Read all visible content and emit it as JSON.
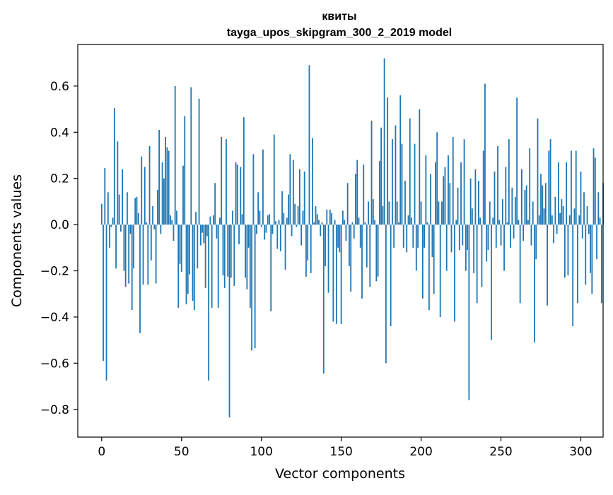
{
  "chart_data": {
    "type": "bar",
    "title": "квиты",
    "subtitle": "tayga_upos_skipgram_300_2_2019 model",
    "xlabel": "Vector components",
    "ylabel": "Components values",
    "xlim": [
      -14.95,
      313.95
    ],
    "ylim": [
      -0.92,
      0.78
    ],
    "grid": false,
    "legend": "none",
    "bar_color": "#1f77b4",
    "x_ticks": [
      0,
      50,
      100,
      150,
      200,
      250,
      300
    ],
    "y_ticks": [
      -0.8,
      -0.6,
      -0.4,
      -0.2,
      0.0,
      0.2,
      0.4,
      0.6
    ],
    "x_tick_labels": [
      "0",
      "50",
      "100",
      "150",
      "200",
      "250",
      "300"
    ],
    "y_tick_labels": [
      "−0.8",
      "−0.6",
      "−0.4",
      "−0.2",
      "0.0",
      "0.2",
      "0.4",
      "0.6"
    ],
    "values": [
      0.09,
      -0.59,
      0.245,
      -0.675,
      0.14,
      -0.1,
      -0.01,
      0.03,
      0.505,
      -0.19,
      0.36,
      0.13,
      -0.03,
      0.24,
      -0.2,
      -0.27,
      0.14,
      -0.255,
      -0.04,
      -0.37,
      -0.19,
      0.115,
      0.12,
      0.05,
      -0.47,
      0.295,
      -0.26,
      0.25,
      0.01,
      -0.26,
      0.34,
      -0.155,
      0.08,
      -0.02,
      -0.255,
      0.15,
      0.41,
      -0.04,
      0.27,
      0.2,
      0.38,
      0.335,
      0.32,
      0.04,
      0.02,
      -0.07,
      0.6,
      0.06,
      -0.36,
      -0.17,
      -0.205,
      0.255,
      0.47,
      -0.345,
      -0.3,
      -0.215,
      0.595,
      -0.33,
      -0.37,
      0.055,
      -0.19,
      0.545,
      -0.09,
      -0.035,
      -0.08,
      -0.275,
      -0.05,
      -0.675,
      0.035,
      -0.36,
      0.04,
      0.18,
      -0.06,
      -0.36,
      0.03,
      0.38,
      -0.22,
      -0.275,
      0.37,
      -0.225,
      -0.835,
      -0.23,
      0.06,
      -0.265,
      0.27,
      0.26,
      -0.085,
      0.25,
      0.045,
      0.465,
      -0.23,
      -0.28,
      -0.1,
      -0.36,
      -0.545,
      0.305,
      -0.535,
      -0.04,
      0.14,
      0.06,
      -0.01,
      0.325,
      -0.065,
      -0.035,
      0.04,
      0.045,
      -0.375,
      -0.04,
      0.39,
      0.015,
      -0.105,
      0.02,
      -0.115,
      0.145,
      0.05,
      -0.195,
      0.03,
      0.13,
      0.305,
      -0.05,
      0.28,
      0.09,
      -0.01,
      0.08,
      0.24,
      -0.09,
      0.06,
      0.23,
      -0.225,
      -0.155,
      0.69,
      -0.21,
      0.375,
      0.01,
      0.08,
      0.045,
      0.02,
      -0.05,
      0.01,
      -0.645,
      -0.18,
      0.065,
      -0.295,
      0.065,
      0.05,
      -0.42,
      0.02,
      -0.43,
      -0.1,
      -0.12,
      -0.43,
      0.06,
      0.02,
      -0.07,
      0.18,
      -0.18,
      -0.29,
      0.01,
      -0.06,
      0.22,
      0.28,
      0.03,
      -0.1,
      -0.32,
      0.26,
      0.01,
      -0.185,
      0.1,
      -0.27,
      0.45,
      0.11,
      0.02,
      -0.245,
      -0.225,
      0.275,
      0.42,
      0.08,
      0.72,
      -0.6,
      0.55,
      0.1,
      -0.44,
      0.37,
      -0.1,
      0.43,
      0.1,
      0.01,
      0.56,
      0.35,
      -0.1,
      0.19,
      -0.12,
      0.04,
      0.46,
      0.03,
      -0.1,
      0.35,
      -0.2,
      -0.1,
      0.5,
      0.1,
      -0.32,
      -0.1,
      0.3,
      0.01,
      -0.37,
      0.22,
      -0.14,
      -0.3,
      0.27,
      0.4,
      0.1,
      -0.4,
      0.1,
      0.21,
      0.25,
      -0.2,
      0.3,
      0.18,
      -0.12,
      0.38,
      -0.42,
      0.02,
      0.16,
      -0.11,
      0.27,
      -0.09,
      0.37,
      -0.2,
      -0.11,
      -0.76,
      0.2,
      0.07,
      -0.21,
      0.24,
      -0.34,
      0.19,
      0.03,
      -0.27,
      0.32,
      0.61,
      -0.16,
      -0.11,
      0.1,
      -0.5,
      0.03,
      0.23,
      -0.1,
      0.34,
      0.02,
      -0.09,
      0.11,
      -0.2,
      0.25,
      0.01,
      0.37,
      -0.1,
      0.16,
      -0.06,
      0.12,
      0.55,
      0.02,
      -0.34,
      0.24,
      -0.07,
      0.15,
      0.17,
      0.02,
      0.33,
      -0.09,
      0.1,
      -0.51,
      -0.15,
      0.46,
      0.04,
      0.22,
      0.17,
      0.07,
      0.18,
      -0.35,
      0.32,
      0.37,
      0.04,
      -0.08,
      0.12,
      -0.04,
      0.27,
      0.05,
      0.11,
      0.08,
      -0.23,
      0.27,
      -0.22,
      0.04,
      0.32,
      -0.44,
      0.07,
      0.32,
      -0.34,
      0.04,
      0.23,
      -0.06,
      0.14,
      -0.26,
      0.08,
      -0.04,
      -0.21,
      -0.3,
      0.33,
      0.29,
      -0.15,
      0.14,
      0.03,
      -0.34,
      0.18
    ]
  }
}
